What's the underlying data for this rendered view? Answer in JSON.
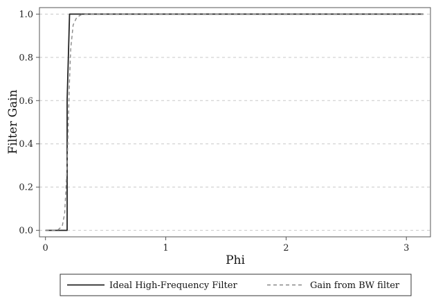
{
  "chart_data": {
    "type": "line",
    "title": "",
    "xlabel": "Phi",
    "ylabel": "Filter Gain",
    "xlim": [
      -0.05,
      3.2
    ],
    "ylim": [
      -0.03,
      1.03
    ],
    "xticks": [
      0,
      1,
      2,
      3
    ],
    "xtick_labels": [
      "0",
      "1",
      "2",
      "3"
    ],
    "yticks": [
      0.0,
      0.2,
      0.4,
      0.6,
      0.8,
      1.0
    ],
    "ytick_labels": [
      "0.0",
      "0.2",
      "0.4",
      "0.6",
      "0.8",
      "1.0"
    ],
    "grid": "horizontal-dashed",
    "legend_position": "bottom",
    "series": [
      {
        "name": "Ideal High-Frequency Filter",
        "style": "solid",
        "color": "#222222",
        "x": [
          0,
          0.18,
          0.18,
          0.2,
          3.14
        ],
        "y": [
          0,
          0,
          0.6,
          1,
          1
        ]
      },
      {
        "name": "Gain from BW filter",
        "style": "dashed",
        "color": "#888888",
        "x": [
          0,
          0.1,
          0.14,
          0.16,
          0.18,
          0.19,
          0.2,
          0.21,
          0.23,
          0.26,
          0.3,
          0.35,
          3.14
        ],
        "y": [
          0,
          0,
          0.02,
          0.08,
          0.3,
          0.5,
          0.7,
          0.84,
          0.95,
          0.985,
          0.998,
          1,
          1
        ]
      }
    ]
  }
}
